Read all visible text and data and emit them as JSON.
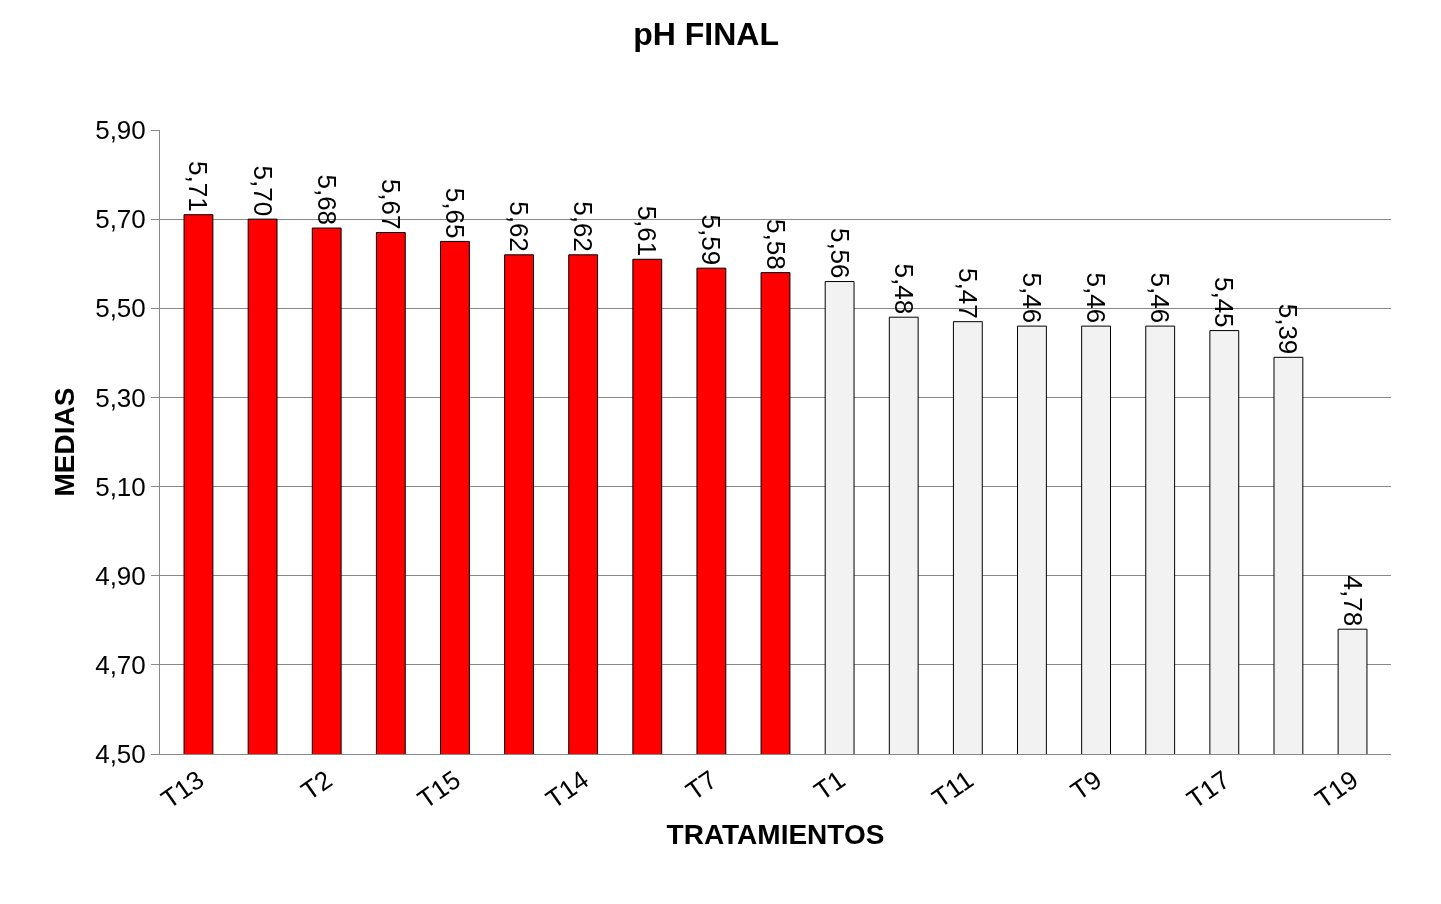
{
  "chart_data": {
    "type": "bar",
    "title": "pH FINAL",
    "xlabel": "TRATAMIENTOS",
    "ylabel": "MEDIAS",
    "categories": [
      "T13",
      null,
      "T2",
      null,
      "T15",
      null,
      "T14",
      null,
      "T7",
      null,
      "T1",
      null,
      "T11",
      null,
      "T9",
      null,
      "T17",
      null,
      "T19"
    ],
    "values": [
      5.71,
      5.7,
      5.68,
      5.67,
      5.65,
      5.62,
      5.62,
      5.61,
      5.59,
      5.58,
      5.56,
      5.48,
      5.47,
      5.46,
      5.46,
      5.46,
      5.45,
      5.39,
      4.78
    ],
    "colors": [
      "#ff0000",
      "#ff0000",
      "#ff0000",
      "#ff0000",
      "#ff0000",
      "#ff0000",
      "#ff0000",
      "#ff0000",
      "#ff0000",
      "#ff0000",
      "#f2f2f2",
      "#f2f2f2",
      "#f2f2f2",
      "#f2f2f2",
      "#f2f2f2",
      "#f2f2f2",
      "#f2f2f2",
      "#f2f2f2",
      "#f2f2f2"
    ],
    "value_labels": [
      "5,71",
      "5,70",
      "5,68",
      "5,67",
      "5,65",
      "5,62",
      "5,62",
      "5,61",
      "5,59",
      "5,58",
      "5,56",
      "5,48",
      "5,47",
      "5,46",
      "5,46",
      "5,46",
      "5,45",
      "5,39",
      "4,78"
    ],
    "ylim": [
      4.5,
      5.9
    ],
    "yticks": [
      {
        "value": 4.5,
        "label": "4,50"
      },
      {
        "value": 4.7,
        "label": "4,70"
      },
      {
        "value": 4.9,
        "label": "4,90"
      },
      {
        "value": 5.1,
        "label": "5,10"
      },
      {
        "value": 5.3,
        "label": "5,30"
      },
      {
        "value": 5.5,
        "label": "5,50"
      },
      {
        "value": 5.7,
        "label": "5,70"
      },
      {
        "value": 5.9,
        "label": "5,90"
      }
    ],
    "grid": "y"
  }
}
